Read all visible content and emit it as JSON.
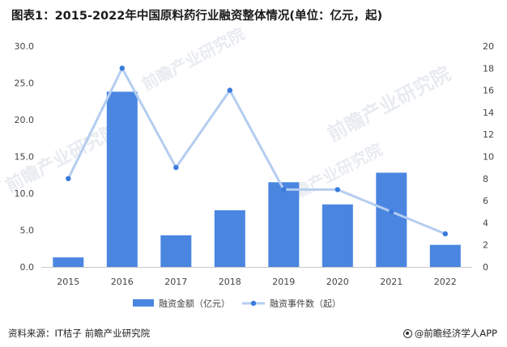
{
  "title": "图表1：2015-2022年中国原料药行业融资整体情况(单位：亿元，起)",
  "watermark": "前瞻产业研究院",
  "footer": {
    "source": "资料来源：IT桔子 前瞻产业研究院",
    "brand": "@前瞻经济学人APP"
  },
  "colors": {
    "bar": "#4a86e0",
    "line": "#b4cdf0",
    "marker": "#3a7bdc",
    "axis": "#c8c8c8"
  },
  "chart_data": {
    "type": "bar",
    "title": "图表1：2015-2022年中国原料药行业融资整体情况(单位：亿元，起)",
    "categories": [
      "2015",
      "2016",
      "2017",
      "2018",
      "2019",
      "2020",
      "2021",
      "2022"
    ],
    "series": [
      {
        "name": "融资金额（亿元）",
        "type": "bar",
        "axis": "left",
        "values": [
          1.3,
          23.8,
          4.3,
          7.7,
          11.5,
          8.5,
          12.8,
          3.0
        ]
      },
      {
        "name": "融资事件数（起）",
        "type": "line",
        "axis": "right",
        "values": [
          8,
          18,
          9,
          16,
          7,
          7,
          5,
          3
        ]
      }
    ],
    "left_ticks": [
      "0.0",
      "5.0",
      "10.0",
      "15.0",
      "20.0",
      "25.0",
      "30.0"
    ],
    "right_ticks": [
      "0",
      "2",
      "4",
      "6",
      "8",
      "10",
      "12",
      "14",
      "16",
      "18",
      "20"
    ],
    "ylim_left": [
      0,
      30
    ],
    "ylim_right": [
      0,
      20
    ],
    "legend_position": "bottom",
    "grid": false
  }
}
